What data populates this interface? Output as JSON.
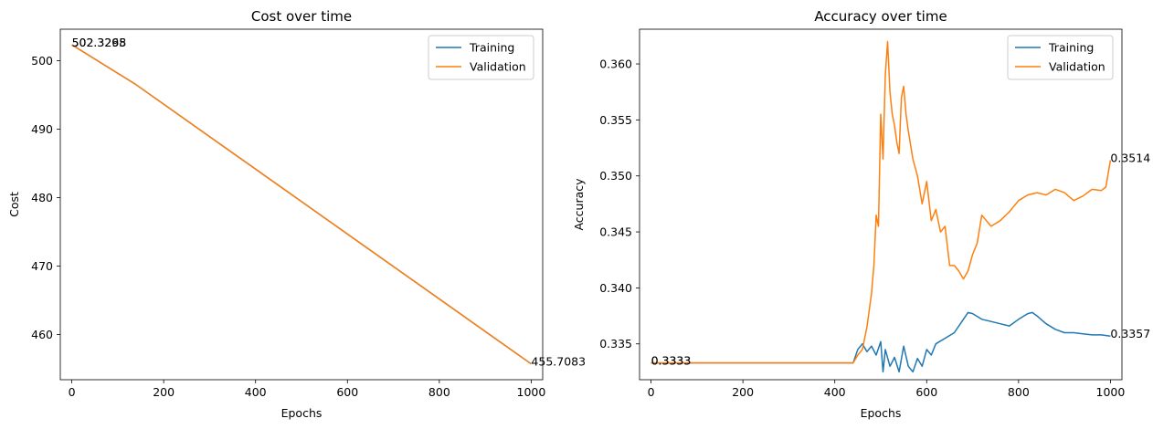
{
  "chart_data": [
    {
      "type": "line",
      "title": "Cost over time",
      "xlabel": "Epochs",
      "ylabel": "Cost",
      "xlim": [
        -25,
        1025
      ],
      "ylim": [
        453.4,
        504.6
      ],
      "xticks": [
        0,
        200,
        400,
        600,
        800,
        1000
      ],
      "yticks": [
        460,
        470,
        480,
        490,
        500
      ],
      "legend": {
        "placement": "top-right",
        "entries": [
          "Training",
          "Validation"
        ]
      },
      "series": [
        {
          "name": "Training",
          "color": "#1f77b4",
          "x": [
            0,
            140,
            1000
          ],
          "y": [
            502.3298,
            496.5,
            455.7083
          ]
        },
        {
          "name": "Validation",
          "color": "#ff7f0e",
          "x": [
            0,
            140,
            1000
          ],
          "y": [
            502.3265,
            496.5,
            455.7083
          ]
        }
      ],
      "annotations": [
        {
          "text": "502.3298",
          "x": 0,
          "y": 502.33
        },
        {
          "text": "502.3265",
          "x": 0,
          "y": 502.33
        },
        {
          "text": "455.7083",
          "x": 1000,
          "y": 455.708
        }
      ]
    },
    {
      "type": "line",
      "title": "Accuracy over time",
      "xlabel": "Epochs",
      "ylabel": "Accuracy",
      "xlim": [
        -25,
        1025
      ],
      "ylim": [
        0.3318,
        0.3631
      ],
      "xticks": [
        0,
        200,
        400,
        600,
        800,
        1000
      ],
      "yticks": [
        0.335,
        0.34,
        0.345,
        0.35,
        0.355,
        0.36
      ],
      "legend": {
        "placement": "top-right",
        "entries": [
          "Training",
          "Validation"
        ]
      },
      "series": [
        {
          "name": "Training",
          "color": "#1f77b4",
          "x": [
            0,
            440,
            450,
            460,
            470,
            480,
            490,
            500,
            505,
            510,
            520,
            530,
            540,
            550,
            560,
            570,
            580,
            590,
            600,
            610,
            620,
            640,
            660,
            680,
            690,
            700,
            720,
            740,
            760,
            780,
            800,
            820,
            830,
            840,
            860,
            880,
            900,
            920,
            940,
            960,
            980,
            1000
          ],
          "y": [
            0.3333,
            0.3333,
            0.3345,
            0.335,
            0.3343,
            0.3348,
            0.334,
            0.3352,
            0.3325,
            0.3345,
            0.333,
            0.3338,
            0.3325,
            0.3348,
            0.333,
            0.3325,
            0.3337,
            0.333,
            0.3345,
            0.334,
            0.335,
            0.3355,
            0.336,
            0.3372,
            0.3378,
            0.3377,
            0.3372,
            0.337,
            0.3368,
            0.3366,
            0.3372,
            0.3377,
            0.3378,
            0.3375,
            0.3368,
            0.3363,
            0.336,
            0.336,
            0.3359,
            0.3358,
            0.3358,
            0.3357
          ]
        },
        {
          "name": "Validation",
          "color": "#ff7f0e",
          "x": [
            0,
            440,
            450,
            460,
            470,
            480,
            485,
            490,
            495,
            500,
            505,
            510,
            515,
            520,
            525,
            530,
            535,
            540,
            545,
            550,
            555,
            560,
            570,
            580,
            590,
            600,
            610,
            620,
            630,
            640,
            650,
            660,
            670,
            680,
            690,
            700,
            710,
            720,
            740,
            760,
            780,
            800,
            820,
            840,
            860,
            880,
            900,
            920,
            940,
            960,
            980,
            990,
            1000
          ],
          "y": [
            0.3333,
            0.3333,
            0.334,
            0.3345,
            0.3365,
            0.3395,
            0.342,
            0.3465,
            0.3455,
            0.3555,
            0.3515,
            0.359,
            0.362,
            0.3575,
            0.3555,
            0.3545,
            0.353,
            0.352,
            0.357,
            0.358,
            0.3555,
            0.354,
            0.3515,
            0.35,
            0.3475,
            0.3495,
            0.346,
            0.347,
            0.345,
            0.3455,
            0.342,
            0.342,
            0.3415,
            0.3408,
            0.3415,
            0.343,
            0.344,
            0.3465,
            0.3455,
            0.346,
            0.3468,
            0.3478,
            0.3483,
            0.3485,
            0.3483,
            0.3488,
            0.3485,
            0.3478,
            0.3482,
            0.3488,
            0.3487,
            0.349,
            0.3514
          ]
        }
      ],
      "annotations": [
        {
          "text": "0.3333",
          "x": 0,
          "y": 0.3333
        },
        {
          "text": "0.3333",
          "x": 0,
          "y": 0.3333
        },
        {
          "text": "0.3514",
          "x": 1000,
          "y": 0.3514
        },
        {
          "text": "0.3357",
          "x": 1000,
          "y": 0.3357
        }
      ]
    }
  ]
}
